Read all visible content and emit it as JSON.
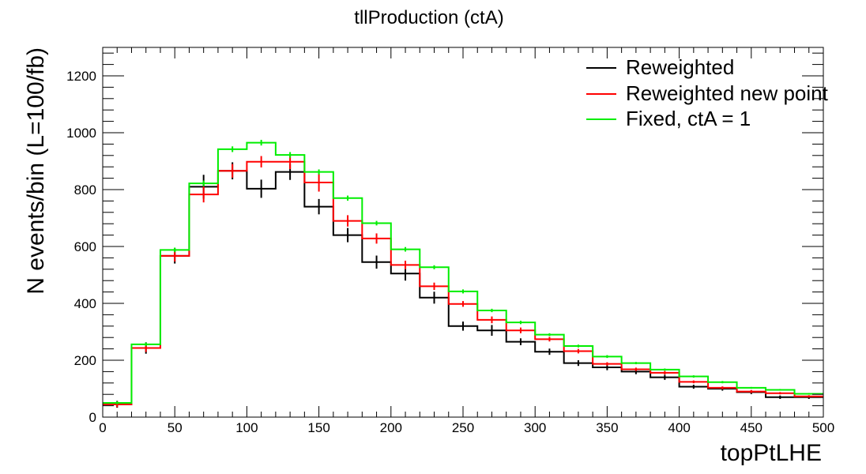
{
  "chart_data": {
    "type": "histogram",
    "title": "tllProduction (ctA)",
    "xlabel": "topPtLHE",
    "ylabel": "N events/bin (L=100/fb)",
    "xlim": [
      0,
      500
    ],
    "ylim": [
      0,
      1300
    ],
    "bin_width": 20,
    "bin_edges": [
      0,
      20,
      40,
      60,
      80,
      100,
      120,
      140,
      160,
      180,
      200,
      220,
      240,
      260,
      280,
      300,
      320,
      340,
      360,
      380,
      400,
      420,
      440,
      460,
      480,
      500
    ],
    "x_ticks": [
      0,
      50,
      100,
      150,
      200,
      250,
      300,
      350,
      400,
      450,
      500
    ],
    "x_tick_labels": [
      "0",
      "50",
      "100",
      "150",
      "200",
      "250",
      "300",
      "350",
      "400",
      "450",
      "500"
    ],
    "y_ticks": [
      0,
      200,
      400,
      600,
      800,
      1000,
      1200
    ],
    "y_tick_labels": [
      "0",
      "200",
      "400",
      "600",
      "800",
      "1000",
      "1200"
    ],
    "legend_position": "top-right",
    "grid": false,
    "series": [
      {
        "name": "Reweighted",
        "color": "#000000",
        "values": [
          45,
          243,
          567,
          810,
          866,
          803,
          862,
          740,
          640,
          545,
          505,
          420,
          320,
          305,
          265,
          230,
          190,
          175,
          160,
          140,
          107,
          100,
          88,
          70,
          70
        ],
        "errors": [
          12,
          20,
          27,
          42,
          30,
          32,
          28,
          27,
          25,
          23,
          25,
          21,
          16,
          19,
          12,
          11,
          10,
          10,
          9,
          9,
          7,
          7,
          7,
          6,
          6
        ]
      },
      {
        "name": "Reweighted new point",
        "color": "#ff0000",
        "values": [
          45,
          243,
          567,
          783,
          866,
          898,
          898,
          825,
          690,
          628,
          535,
          460,
          398,
          342,
          305,
          274,
          232,
          187,
          168,
          156,
          124,
          103,
          90,
          84,
          73
        ],
        "errors": [
          10,
          14,
          20,
          28,
          24,
          20,
          26,
          32,
          20,
          18,
          15,
          13,
          10,
          12,
          10,
          8,
          8,
          6,
          6,
          6,
          5,
          5,
          5,
          4,
          4
        ]
      },
      {
        "name": "Fixed, ctA = 1",
        "color": "#00ee00",
        "values": [
          50,
          256,
          588,
          822,
          942,
          965,
          922,
          862,
          770,
          682,
          590,
          527,
          442,
          375,
          333,
          290,
          250,
          213,
          190,
          167,
          143,
          123,
          103,
          96,
          82
        ],
        "errors": [
          5,
          6,
          8,
          10,
          10,
          10,
          10,
          9,
          9,
          8,
          8,
          7,
          7,
          6,
          6,
          5,
          5,
          5,
          4,
          4,
          4,
          4,
          3,
          3,
          3
        ]
      }
    ]
  }
}
